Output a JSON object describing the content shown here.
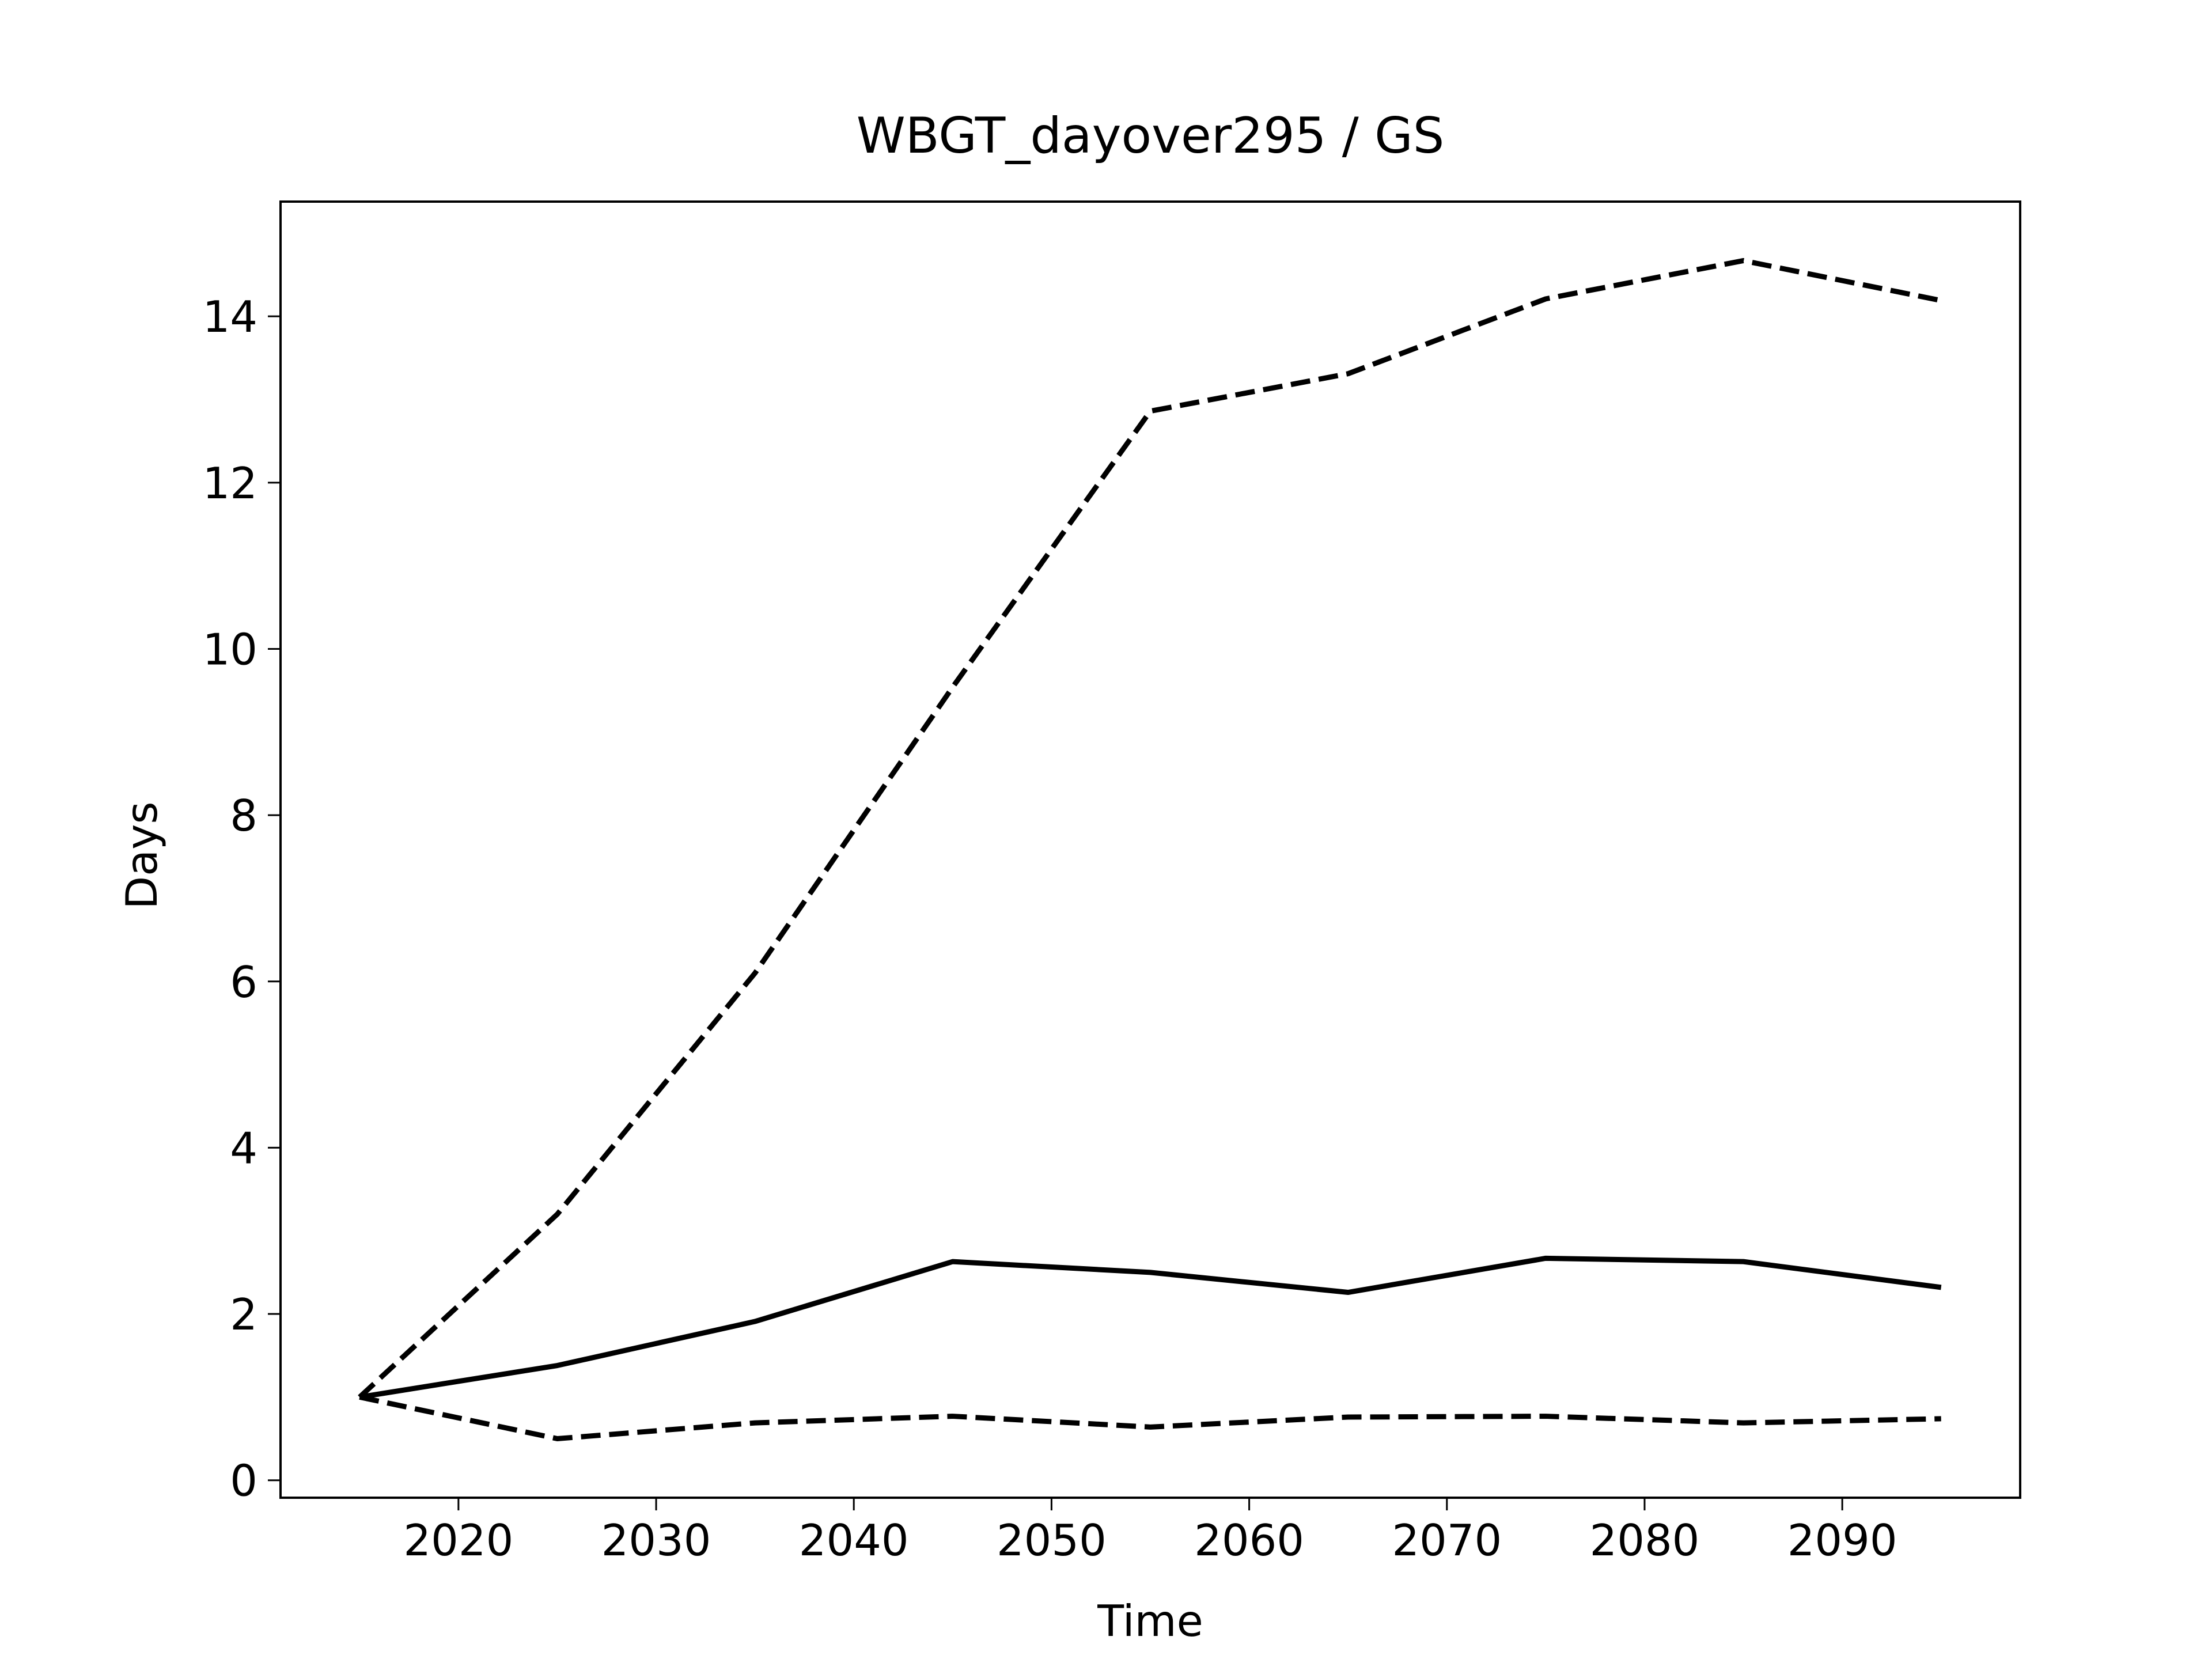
{
  "chart_data": {
    "type": "line",
    "title": "WBGT_dayover295 / GS",
    "x_label": "Time",
    "y_label": "Days",
    "x": [
      2015,
      2025,
      2035,
      2045,
      2055,
      2065,
      2075,
      2085,
      2095
    ],
    "series": [
      {
        "color": "#000000",
        "linestyle": "solid",
        "values": [
          1.0,
          1.38,
          1.91,
          2.63,
          2.5,
          2.26,
          2.67,
          2.63,
          2.32
        ]
      },
      {
        "color": "#000000",
        "linestyle": "dashed",
        "values": [
          1.0,
          3.2,
          6.1,
          9.54,
          12.86,
          13.31,
          14.21,
          14.67,
          14.19
        ]
      },
      {
        "color": "#000000",
        "linestyle": "dashed",
        "values": [
          1.0,
          0.5,
          0.69,
          0.77,
          0.64,
          0.76,
          0.77,
          0.69,
          0.74
        ]
      }
    ],
    "xlim": [
      2011,
      2099
    ],
    "ylim": [
      -0.21,
      15.38
    ],
    "xticks": [
      2020,
      2030,
      2040,
      2050,
      2060,
      2070,
      2080,
      2090
    ],
    "yticks": [
      0,
      2,
      4,
      6,
      8,
      10,
      12,
      14
    ],
    "grid": false
  }
}
